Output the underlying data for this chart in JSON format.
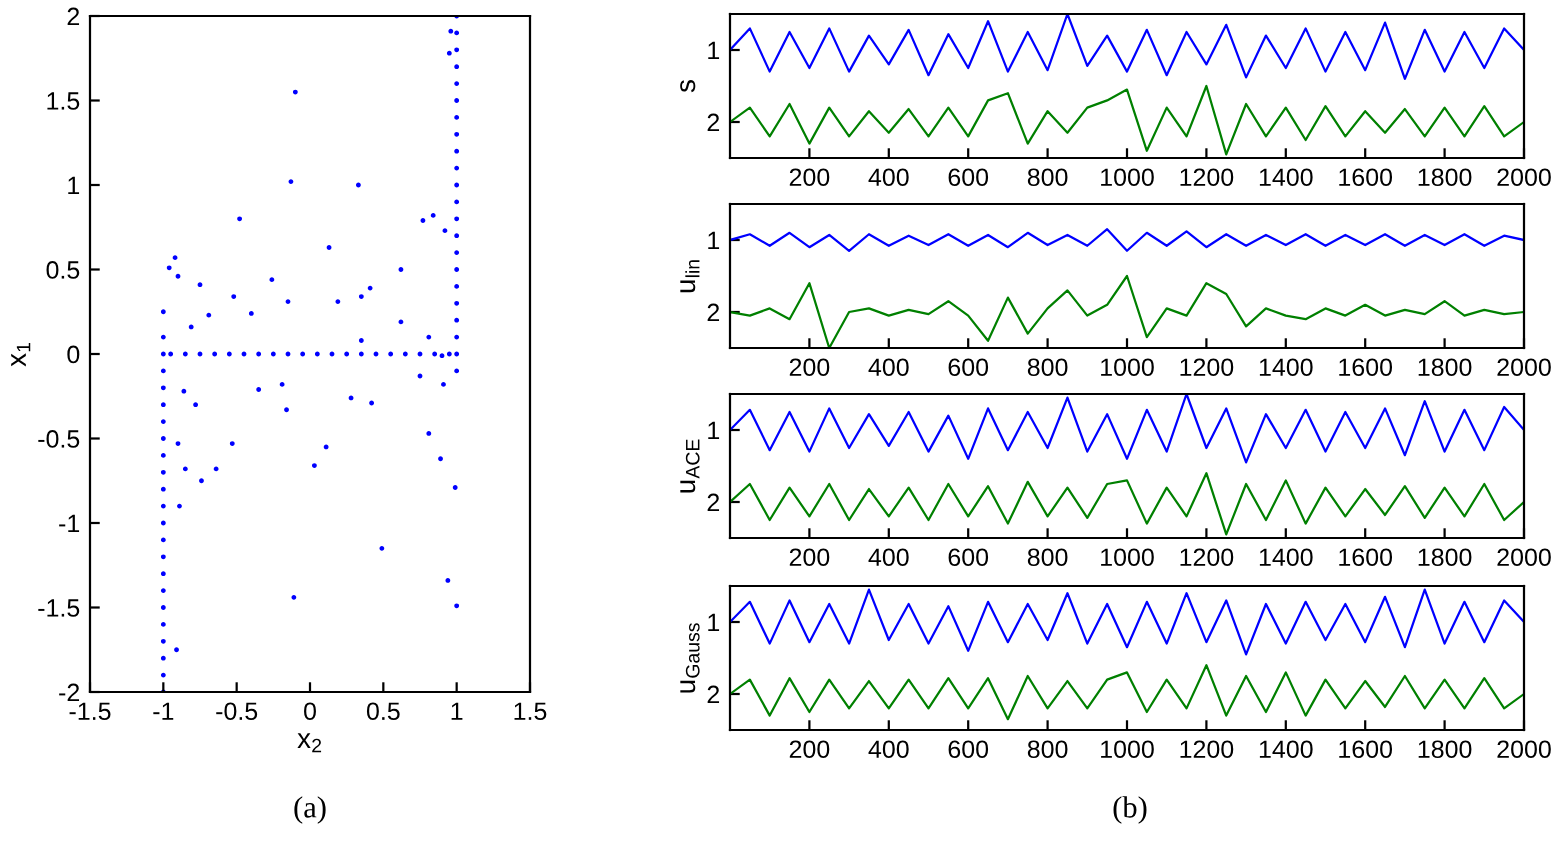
{
  "chart_data": [
    {
      "type": "scatter",
      "xlabel": "x$_{2}$",
      "ylabel": "x$_{1}$",
      "xlim": [
        -1.5,
        1.5
      ],
      "ylim": [
        -2,
        2
      ],
      "xticks": [
        -1.5,
        -1,
        -0.5,
        0,
        0.5,
        1,
        1.5
      ],
      "yticks": [
        -2,
        -1.5,
        -1,
        -0.5,
        0,
        0.5,
        1,
        1.5,
        2
      ],
      "grid": false,
      "marker": "circle",
      "annotations": [
        "(a)"
      ],
      "series": [
        {
          "color": "#0000ff",
          "x": [
            -1,
            -1,
            -1,
            -1,
            -1,
            -1,
            -1,
            -1,
            -1,
            -1,
            -1,
            -1,
            -1,
            -1,
            -1,
            -1,
            -1,
            -1,
            -1,
            -1,
            -1,
            -1,
            -1,
            1,
            1,
            1,
            1,
            1,
            1,
            1,
            1,
            1,
            1,
            1,
            1,
            1,
            1,
            1,
            1,
            1,
            1,
            1,
            1,
            1,
            1,
            -0.95,
            -0.85,
            -0.75,
            -0.65,
            -0.55,
            -0.45,
            -0.35,
            -0.25,
            -0.15,
            -0.05,
            0.05,
            0.15,
            0.25,
            0.35,
            0.45,
            0.55,
            0.65,
            0.75,
            0.85,
            0.95,
            -0.1,
            -0.13,
            0.33,
            -0.48,
            0.13,
            -0.92,
            -0.96,
            -0.9,
            -0.75,
            -0.26,
            0.62,
            0.77,
            0.84,
            0.92,
            0.41,
            0.35,
            -0.52,
            -0.4,
            0.19,
            0.62,
            -0.15,
            -0.69,
            -0.81,
            0.35,
            0.81,
            -0.86,
            -0.35,
            -0.19,
            0.28,
            0.42,
            0.75,
            0.91,
            -0.16,
            -0.78,
            -0.9,
            -0.53,
            0.11,
            0.03,
            0.81,
            0.89,
            0.99,
            -0.85,
            -0.74,
            -0.64,
            -0.89,
            0.49,
            -0.11,
            0.94,
            1.0,
            -0.91,
            0.95,
            0.96,
            0.9
          ],
          "values": [
            -2,
            -1.9,
            -1.8,
            -1.7,
            -1.6,
            -1.5,
            -1.4,
            -1.3,
            -1.2,
            -1.1,
            -1,
            -0.9,
            -0.8,
            -0.7,
            -0.6,
            -0.5,
            -0.4,
            -0.3,
            -0.2,
            -0.1,
            0,
            0.1,
            0.25,
            -0.1,
            0,
            0.1,
            0.2,
            0.3,
            0.4,
            0.5,
            0.6,
            0.7,
            0.8,
            0.9,
            1,
            1.1,
            1.2,
            1.3,
            1.4,
            1.5,
            1.6,
            1.7,
            1.8,
            1.9,
            2,
            0,
            0,
            0,
            0,
            0,
            0,
            0,
            0,
            0,
            0,
            0,
            0,
            0,
            0,
            0,
            0,
            0,
            0,
            0,
            0,
            1.55,
            1.02,
            1.0,
            0.8,
            0.63,
            0.57,
            0.51,
            0.46,
            0.41,
            0.44,
            0.5,
            0.79,
            0.82,
            0.73,
            0.39,
            0.34,
            0.34,
            0.24,
            0.31,
            0.19,
            0.31,
            0.23,
            0.16,
            0.08,
            0.1,
            -0.22,
            -0.21,
            -0.18,
            -0.26,
            -0.29,
            -0.13,
            -0.18,
            -0.33,
            -0.3,
            -0.53,
            -0.53,
            -0.55,
            -0.66,
            -0.47,
            -0.62,
            -0.79,
            -0.68,
            -0.75,
            -0.68,
            -0.9,
            -1.15,
            -1.44,
            -1.34,
            -1.49,
            -1.75,
            1.78,
            1.91,
            -0.01
          ]
        }
      ]
    },
    {
      "type": "line",
      "ylabel": "s",
      "xlim": [
        0,
        2000
      ],
      "ylim": [
        2.5,
        0.5
      ],
      "xticks": [
        200,
        400,
        600,
        800,
        1000,
        1200,
        1400,
        1600,
        1800,
        2000
      ],
      "yticks": [
        1,
        2
      ],
      "grid": false,
      "marker": "none",
      "line_style": "solid",
      "annotations": [
        "(b)"
      ],
      "x": [
        0,
        50,
        100,
        150,
        200,
        250,
        300,
        350,
        400,
        450,
        500,
        550,
        600,
        650,
        700,
        750,
        800,
        850,
        900,
        950,
        1000,
        1050,
        1100,
        1150,
        1200,
        1250,
        1300,
        1350,
        1400,
        1450,
        1500,
        1550,
        1600,
        1650,
        1700,
        1750,
        1800,
        1850,
        1900,
        1950,
        2000
      ],
      "series": [
        {
          "color": "#0000ff",
          "values": [
            1.0,
            0.7,
            1.3,
            0.75,
            1.25,
            0.7,
            1.3,
            0.8,
            1.2,
            0.72,
            1.35,
            0.78,
            1.25,
            0.6,
            1.3,
            0.75,
            1.28,
            0.5,
            1.22,
            0.8,
            1.3,
            0.72,
            1.35,
            0.75,
            1.2,
            0.65,
            1.38,
            0.8,
            1.25,
            0.7,
            1.3,
            0.75,
            1.28,
            0.62,
            1.4,
            0.72,
            1.3,
            0.75,
            1.25,
            0.7,
            1.0
          ]
        },
        {
          "color": "#008000",
          "values": [
            2.0,
            1.8,
            2.2,
            1.75,
            2.3,
            1.8,
            2.2,
            1.85,
            2.15,
            1.82,
            2.2,
            1.8,
            2.2,
            1.7,
            1.6,
            2.3,
            1.85,
            2.15,
            1.8,
            1.7,
            1.55,
            2.4,
            1.8,
            2.2,
            1.5,
            2.45,
            1.75,
            2.2,
            1.8,
            2.25,
            1.78,
            2.2,
            1.85,
            2.15,
            1.82,
            2.2,
            1.8,
            2.2,
            1.78,
            2.2,
            2.0
          ]
        }
      ]
    },
    {
      "type": "line",
      "ylabel": "u$_{lin}$",
      "xlim": [
        0,
        2000
      ],
      "ylim": [
        2.5,
        0.5
      ],
      "xticks": [
        200,
        400,
        600,
        800,
        1000,
        1200,
        1400,
        1600,
        1800,
        2000
      ],
      "yticks": [
        1,
        2
      ],
      "grid": false,
      "marker": "none",
      "line_style": "solid",
      "x": [
        0,
        50,
        100,
        150,
        200,
        250,
        300,
        350,
        400,
        450,
        500,
        550,
        600,
        650,
        700,
        750,
        800,
        850,
        900,
        950,
        1000,
        1050,
        1100,
        1150,
        1200,
        1250,
        1300,
        1350,
        1400,
        1450,
        1500,
        1550,
        1600,
        1650,
        1700,
        1750,
        1800,
        1850,
        1900,
        1950,
        2000
      ],
      "series": [
        {
          "color": "#0000ff",
          "values": [
            1.0,
            0.92,
            1.08,
            0.9,
            1.1,
            0.93,
            1.15,
            0.92,
            1.08,
            0.94,
            1.07,
            0.92,
            1.08,
            0.93,
            1.1,
            0.9,
            1.07,
            0.93,
            1.08,
            0.85,
            1.15,
            0.9,
            1.08,
            0.88,
            1.1,
            0.92,
            1.08,
            0.93,
            1.07,
            0.92,
            1.08,
            0.93,
            1.07,
            0.92,
            1.08,
            0.93,
            1.07,
            0.92,
            1.08,
            0.94,
            1.0
          ]
        },
        {
          "color": "#008000",
          "values": [
            2.0,
            2.05,
            1.95,
            2.1,
            1.6,
            2.5,
            2.0,
            1.95,
            2.05,
            1.97,
            2.03,
            1.85,
            2.05,
            2.4,
            1.8,
            2.3,
            1.95,
            1.7,
            2.05,
            1.9,
            1.5,
            2.35,
            1.95,
            2.05,
            1.6,
            1.75,
            2.2,
            1.95,
            2.05,
            2.1,
            1.95,
            2.05,
            1.9,
            2.05,
            1.97,
            2.03,
            1.85,
            2.05,
            1.97,
            2.03,
            2.0
          ]
        }
      ]
    },
    {
      "type": "line",
      "ylabel": "u$_{ACE}$",
      "xlim": [
        0,
        2000
      ],
      "ylim": [
        2.5,
        0.5
      ],
      "xticks": [
        200,
        400,
        600,
        800,
        1000,
        1200,
        1400,
        1600,
        1800,
        2000
      ],
      "yticks": [
        1,
        2
      ],
      "grid": false,
      "marker": "none",
      "line_style": "solid",
      "x": [
        0,
        50,
        100,
        150,
        200,
        250,
        300,
        350,
        400,
        450,
        500,
        550,
        600,
        650,
        700,
        750,
        800,
        850,
        900,
        950,
        1000,
        1050,
        1100,
        1150,
        1200,
        1250,
        1300,
        1350,
        1400,
        1450,
        1500,
        1550,
        1600,
        1650,
        1700,
        1750,
        1800,
        1850,
        1900,
        1950,
        2000
      ],
      "series": [
        {
          "color": "#0000ff",
          "values": [
            1.0,
            0.72,
            1.28,
            0.75,
            1.3,
            0.7,
            1.25,
            0.78,
            1.22,
            0.75,
            1.3,
            0.8,
            1.4,
            0.7,
            1.28,
            0.75,
            1.25,
            0.55,
            1.3,
            0.78,
            1.4,
            0.72,
            1.3,
            0.5,
            1.25,
            0.7,
            1.45,
            0.78,
            1.25,
            0.72,
            1.3,
            0.75,
            1.25,
            0.7,
            1.35,
            0.6,
            1.3,
            0.72,
            1.28,
            0.68,
            1.0
          ]
        },
        {
          "color": "#008000",
          "values": [
            2.0,
            1.75,
            2.25,
            1.8,
            2.2,
            1.75,
            2.25,
            1.82,
            2.2,
            1.8,
            2.25,
            1.75,
            2.2,
            1.78,
            2.3,
            1.72,
            2.2,
            1.8,
            2.22,
            1.75,
            1.7,
            2.3,
            1.8,
            2.2,
            1.6,
            2.45,
            1.75,
            2.25,
            1.7,
            2.3,
            1.8,
            2.2,
            1.82,
            2.18,
            1.78,
            2.22,
            1.8,
            2.2,
            1.75,
            2.25,
            2.0
          ]
        }
      ]
    },
    {
      "type": "line",
      "ylabel": "u$_{Gauss}$",
      "xlim": [
        0,
        2000
      ],
      "ylim": [
        2.5,
        0.5
      ],
      "xticks": [
        200,
        400,
        600,
        800,
        1000,
        1200,
        1400,
        1600,
        1800,
        2000
      ],
      "yticks": [
        1,
        2
      ],
      "grid": false,
      "marker": "none",
      "line_style": "solid",
      "x": [
        0,
        50,
        100,
        150,
        200,
        250,
        300,
        350,
        400,
        450,
        500,
        550,
        600,
        650,
        700,
        750,
        800,
        850,
        900,
        950,
        1000,
        1050,
        1100,
        1150,
        1200,
        1250,
        1300,
        1350,
        1400,
        1450,
        1500,
        1550,
        1600,
        1650,
        1700,
        1750,
        1800,
        1850,
        1900,
        1950,
        2000
      ],
      "series": [
        {
          "color": "#0000ff",
          "values": [
            1.0,
            0.72,
            1.3,
            0.7,
            1.28,
            0.75,
            1.3,
            0.55,
            1.25,
            0.75,
            1.3,
            0.78,
            1.4,
            0.72,
            1.28,
            0.75,
            1.25,
            0.6,
            1.3,
            0.75,
            1.35,
            0.72,
            1.3,
            0.6,
            1.28,
            0.7,
            1.45,
            0.75,
            1.3,
            0.72,
            1.25,
            0.75,
            1.28,
            0.65,
            1.35,
            0.55,
            1.3,
            0.72,
            1.28,
            0.7,
            1.0
          ]
        },
        {
          "color": "#008000",
          "values": [
            2.0,
            1.8,
            2.3,
            1.78,
            2.25,
            1.8,
            2.2,
            1.82,
            2.2,
            1.8,
            2.2,
            1.78,
            2.2,
            1.78,
            2.35,
            1.75,
            2.2,
            1.82,
            2.2,
            1.8,
            1.7,
            2.25,
            1.8,
            2.2,
            1.6,
            2.3,
            1.75,
            2.25,
            1.7,
            2.3,
            1.8,
            2.2,
            1.82,
            2.18,
            1.75,
            2.2,
            1.8,
            2.2,
            1.78,
            2.2,
            2.0
          ]
        }
      ]
    }
  ]
}
